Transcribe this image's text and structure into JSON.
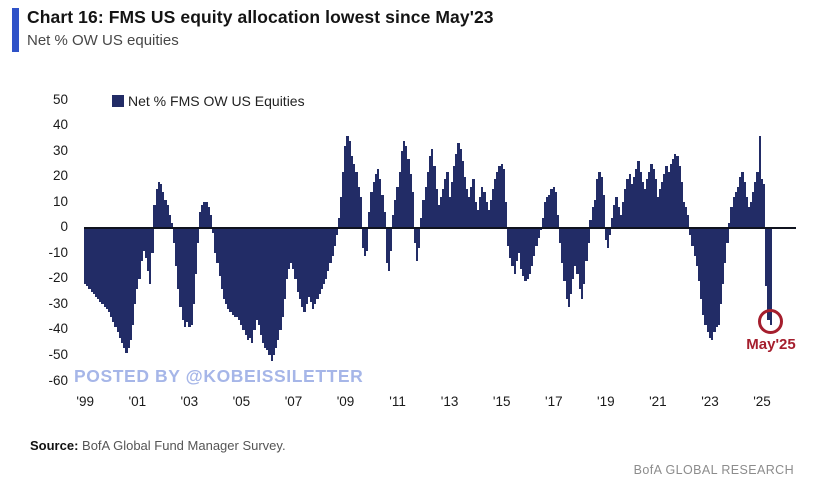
{
  "header": {
    "title": "Chart 16: FMS US equity allocation lowest since May'23",
    "subtitle": "Net % OW US equities"
  },
  "legend": {
    "label": "Net % FMS OW US Equities"
  },
  "watermark": "POSTED BY @KOBEISSILETTER",
  "annotation": {
    "label": "May'25",
    "value": -38
  },
  "footer": {
    "source_label": "Source:",
    "source_text": " BofA Global Fund Manager Survey.",
    "brand": "BofA GLOBAL RESEARCH"
  },
  "colors": {
    "bar": "#222c66",
    "accent_bar": "#2f52c8",
    "annotation": "#a51e2d",
    "watermark": "#a6b6e8",
    "zero_line": "#10131f"
  },
  "chart_data": {
    "type": "bar",
    "title": "Chart 16: FMS US equity allocation lowest since May'23",
    "xlabel": "",
    "ylabel": "Net % OW US equities",
    "ylim": [
      -60,
      50
    ],
    "grid": false,
    "legend_position": "top-left",
    "frequency": "monthly",
    "start": "1999-01",
    "end": "2025-05",
    "y_ticks": [
      50,
      40,
      30,
      20,
      10,
      0,
      -10,
      -20,
      -30,
      -40,
      -50,
      -60
    ],
    "x_ticks": [
      "'99",
      "'01",
      "'03",
      "'05",
      "'07",
      "'09",
      "'11",
      "'13",
      "'15",
      "'17",
      "'19",
      "'21",
      "'23",
      "'25"
    ],
    "x_tick_interval_months": 24,
    "series": [
      {
        "name": "Net % FMS OW US Equities",
        "values": [
          -22,
          -23,
          -24,
          -25,
          -26,
          -27,
          -28,
          -29,
          -30,
          -31,
          -32,
          -33,
          -35,
          -37,
          -39,
          -41,
          -43,
          -45,
          -47,
          -49,
          -47,
          -44,
          -38,
          -30,
          -24,
          -20,
          -13,
          -9,
          -12,
          -17,
          -22,
          -10,
          9,
          15,
          18,
          17,
          14,
          11,
          9,
          5,
          2,
          -6,
          -15,
          -24,
          -31,
          -36,
          -39,
          -37,
          -39,
          -38,
          -30,
          -18,
          -6,
          6,
          9,
          10,
          10,
          8,
          5,
          -2,
          -10,
          -14,
          -19,
          -24,
          -28,
          -30,
          -32,
          -33,
          -34,
          -35,
          -35,
          -36,
          -38,
          -40,
          -42,
          -44,
          -43,
          -45,
          -40,
          -36,
          -38,
          -42,
          -45,
          -47,
          -48,
          -50,
          -52,
          -50,
          -47,
          -44,
          -40,
          -35,
          -28,
          -20,
          -16,
          -14,
          -16,
          -20,
          -25,
          -28,
          -31,
          -33,
          -30,
          -27,
          -29,
          -32,
          -30,
          -28,
          -26,
          -24,
          -22,
          -20,
          -17,
          -14,
          -11,
          -7,
          -3,
          4,
          12,
          22,
          32,
          36,
          34,
          28,
          25,
          22,
          16,
          12,
          -8,
          -11,
          -9,
          6,
          14,
          18,
          21,
          23,
          19,
          13,
          6,
          -14,
          -17,
          -9,
          5,
          11,
          16,
          22,
          30,
          34,
          32,
          27,
          21,
          14,
          -6,
          -13,
          -8,
          4,
          11,
          16,
          22,
          28,
          31,
          24,
          15,
          9,
          12,
          15,
          19,
          22,
          12,
          18,
          24,
          29,
          33,
          31,
          26,
          20,
          15,
          12,
          16,
          19,
          10,
          7,
          12,
          16,
          14,
          10,
          7,
          11,
          15,
          19,
          22,
          24,
          25,
          23,
          10,
          -7,
          -12,
          -15,
          -18,
          -13,
          -10,
          -16,
          -19,
          -21,
          -20,
          -18,
          -15,
          -11,
          -7,
          -4,
          -1,
          4,
          10,
          12,
          13,
          15,
          16,
          14,
          5,
          -6,
          -14,
          -21,
          -28,
          -31,
          -26,
          -20,
          -15,
          -18,
          -24,
          -28,
          -22,
          -13,
          -6,
          3,
          8,
          11,
          19,
          22,
          20,
          13,
          -5,
          -8,
          -3,
          4,
          9,
          12,
          8,
          5,
          10,
          15,
          19,
          21,
          17,
          20,
          23,
          26,
          22,
          18,
          15,
          19,
          22,
          25,
          23,
          19,
          12,
          15,
          18,
          21,
          24,
          22,
          25,
          27,
          29,
          28,
          24,
          18,
          10,
          8,
          5,
          -3,
          -7,
          -11,
          -15,
          -21,
          -28,
          -34,
          -38,
          -41,
          -43,
          -44,
          -41,
          -39,
          -38,
          -30,
          -22,
          -14,
          -6,
          2,
          8,
          12,
          14,
          16,
          20,
          22,
          18,
          12,
          8,
          10,
          14,
          18,
          22,
          36,
          19,
          17,
          -23,
          -36,
          -38
        ]
      }
    ],
    "annotations": [
      {
        "text": "May'25",
        "target_month": "2025-05",
        "target_value": -38,
        "style": "circle"
      }
    ]
  }
}
